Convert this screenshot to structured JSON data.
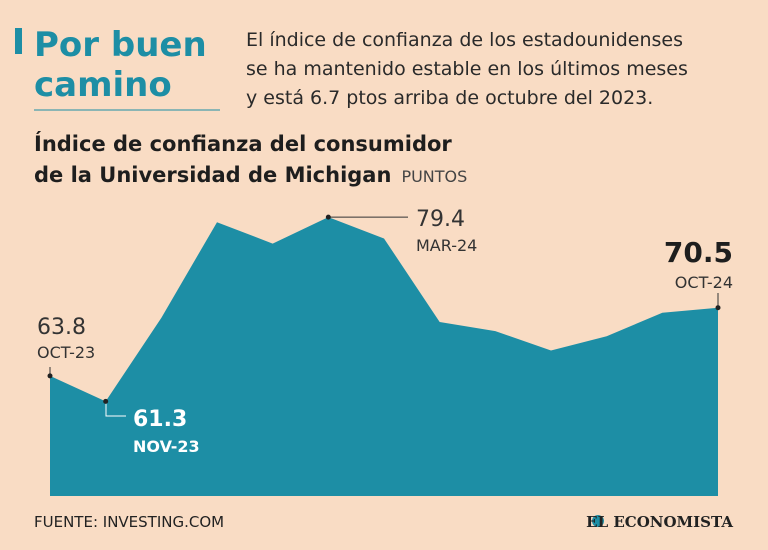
{
  "header": {
    "title": [
      "Por buen",
      "camino"
    ],
    "description": [
      "El índice de confianza de los estadounidenses",
      "se ha mantenido estable en los últimos meses",
      "y está 6.7 ptos arriba de octubre del 2023."
    ]
  },
  "chart_data": {
    "type": "area",
    "title": [
      "Índice de confianza del consumidor",
      "de la Universidad de Michigan"
    ],
    "unit": "PUNTOS",
    "categories": [
      "OCT-23",
      "NOV-23",
      null,
      null,
      null,
      "MAR-24",
      null,
      null,
      null,
      null,
      null,
      null,
      "OCT-24"
    ],
    "values": [
      63.8,
      61.3,
      69.5,
      78.9,
      76.8,
      79.4,
      77.3,
      69.1,
      68.2,
      66.3,
      67.7,
      70.0,
      70.5
    ],
    "color": "#1d8ea5",
    "ylim": [
      52,
      80
    ]
  },
  "footer": {
    "source": "FUENTE: INVESTING.COM",
    "brand": "EL ECONOMISTA"
  }
}
